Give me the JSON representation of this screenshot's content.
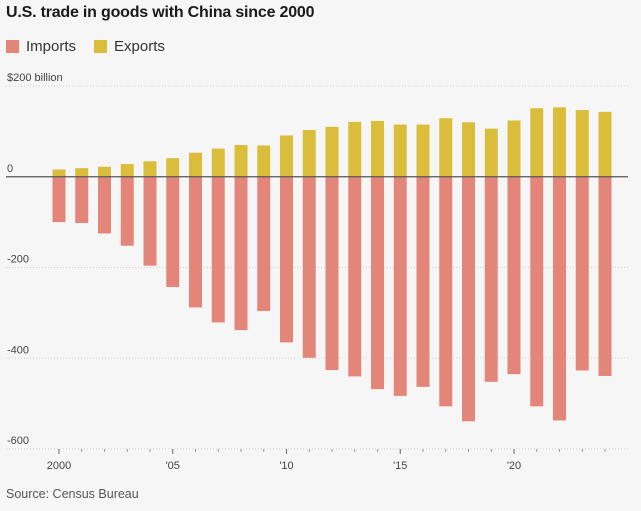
{
  "title": "U.S. trade in goods with China since 2000",
  "source": "Source: Census Bureau",
  "legend": [
    {
      "name": "Imports",
      "color": "#e4857a"
    },
    {
      "name": "Exports",
      "color": "#dbbd3c"
    }
  ],
  "chart_data": {
    "type": "bar",
    "title": "U.S. trade in goods with China since 2000",
    "xlabel": "",
    "ylabel": "",
    "ylim": [
      -600,
      200
    ],
    "grid": true,
    "legend_placement": "top-left",
    "y_ticks": [
      {
        "value": 200,
        "label": "$200 billion"
      },
      {
        "value": 0,
        "label": "0"
      },
      {
        "value": -200,
        "label": "-200"
      },
      {
        "value": -400,
        "label": "-400"
      },
      {
        "value": -600,
        "label": "-600"
      }
    ],
    "x_ticks": [
      {
        "year": 2000,
        "label": "2000"
      },
      {
        "year": 2005,
        "label": "'05"
      },
      {
        "year": 2010,
        "label": "'10"
      },
      {
        "year": 2015,
        "label": "'15"
      },
      {
        "year": 2020,
        "label": "'20"
      }
    ],
    "categories": [
      2000,
      2001,
      2002,
      2003,
      2004,
      2005,
      2006,
      2007,
      2008,
      2009,
      2010,
      2011,
      2012,
      2013,
      2014,
      2015,
      2016,
      2017,
      2018,
      2019,
      2020,
      2021,
      2022,
      2023,
      2024
    ],
    "series": [
      {
        "name": "Imports",
        "color": "#e4857a",
        "values": [
          -100,
          -102,
          -125,
          -152,
          -196,
          -243,
          -288,
          -321,
          -338,
          -296,
          -365,
          -399,
          -426,
          -440,
          -468,
          -483,
          -463,
          -506,
          -539,
          -452,
          -435,
          -506,
          -537,
          -427,
          -439
        ]
      },
      {
        "name": "Exports",
        "color": "#dbbd3c",
        "values": [
          16,
          19,
          22,
          28,
          34,
          41,
          53,
          62,
          70,
          69,
          91,
          103,
          110,
          121,
          123,
          115,
          115,
          129,
          120,
          106,
          124,
          151,
          153,
          147,
          143
        ]
      }
    ]
  }
}
